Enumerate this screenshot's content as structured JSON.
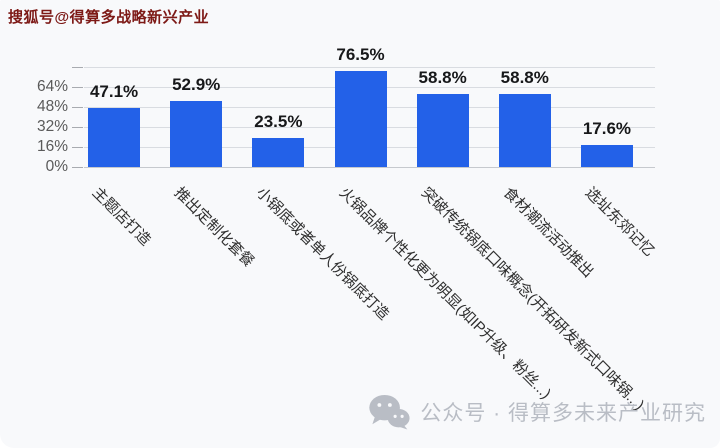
{
  "watermarks": {
    "top": "搜狐号@得算多战略新兴产业",
    "bottom": "公众号 · 得算多未来产业研究"
  },
  "colors": {
    "bar": "#2361e8",
    "background": "#f8f9fb",
    "grid": "#d9dce1",
    "baseline": "#c6c9ce",
    "tick_dash": "#a8abb0",
    "tick_label": "#5a5a5a",
    "value_label": "#17181a",
    "x_label": "#2f2f2f",
    "watermark_top": "#7d1916",
    "watermark_bottom": "#b9bdc5"
  },
  "chart_data": {
    "type": "bar",
    "title": "",
    "xlabel": "",
    "ylabel": "",
    "categories": [
      "主题店打造",
      "推出定制化套餐",
      "小锅底或者单人份锅底打造",
      "火锅品牌个性化更为明显(如IP升级、粉丝...)",
      "突破传统锅底口味概念(开拓研发新式口味锅...)",
      "食材潮流活动推出",
      "选址东郊记忆"
    ],
    "values": [
      47.1,
      52.9,
      23.5,
      76.5,
      58.8,
      58.8,
      17.6
    ],
    "value_labels": [
      "47.1%",
      "52.9%",
      "23.5%",
      "76.5%",
      "58.8%",
      "58.8%",
      "17.6%"
    ],
    "y_ticks": [
      "0%",
      "16%",
      "32%",
      "48%",
      "64%"
    ],
    "y_tick_values": [
      0,
      16,
      32,
      48,
      64
    ],
    "ylim": [
      0,
      80
    ],
    "grid": true,
    "legend_position": "none",
    "x_label_rotation_deg": 45
  }
}
